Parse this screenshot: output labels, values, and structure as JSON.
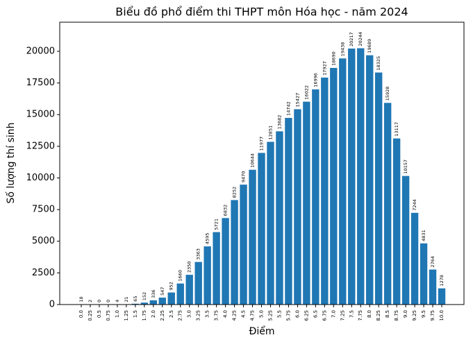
{
  "chart_data": {
    "type": "bar",
    "title": "Biểu đồ phổ điểm thi THPT môn Hóa học - năm 2024",
    "x_label": "Điểm",
    "y_label": "Số lượng thí sinh",
    "categories": [
      "0.0",
      "0.25",
      "0.5",
      "0.75",
      "1.0",
      "1.25",
      "1.5",
      "1.75",
      "2.0",
      "2.25",
      "2.5",
      "2.75",
      "3.0",
      "3.25",
      "3.5",
      "3.75",
      "4.0",
      "4.25",
      "4.5",
      "4.75",
      "5.0",
      "5.25",
      "5.5",
      "5.75",
      "6.0",
      "6.25",
      "6.5",
      "6.75",
      "7.0",
      "7.25",
      "7.5",
      "7.75",
      "8.0",
      "8.25",
      "8.5",
      "8.75",
      "9.0",
      "9.25",
      "9.5",
      "9.75",
      "10.0"
    ],
    "values": [
      18,
      2,
      0,
      0,
      4,
      21,
      65,
      152,
      336,
      547,
      952,
      1660,
      2350,
      3363,
      4595,
      5721,
      6832,
      8252,
      9470,
      10644,
      11977,
      12851,
      13682,
      14742,
      15427,
      16022,
      16996,
      17927,
      18690,
      19438,
      20217,
      20244,
      19689,
      18325,
      15928,
      13117,
      10157,
      7244,
      4831,
      2764,
      1278
    ],
    "color": "#1f77b4",
    "ylim": [
      0,
      22300
    ],
    "yticks": [
      0,
      2500,
      5000,
      7500,
      10000,
      12500,
      15000,
      17500,
      20000
    ],
    "grid": false
  }
}
